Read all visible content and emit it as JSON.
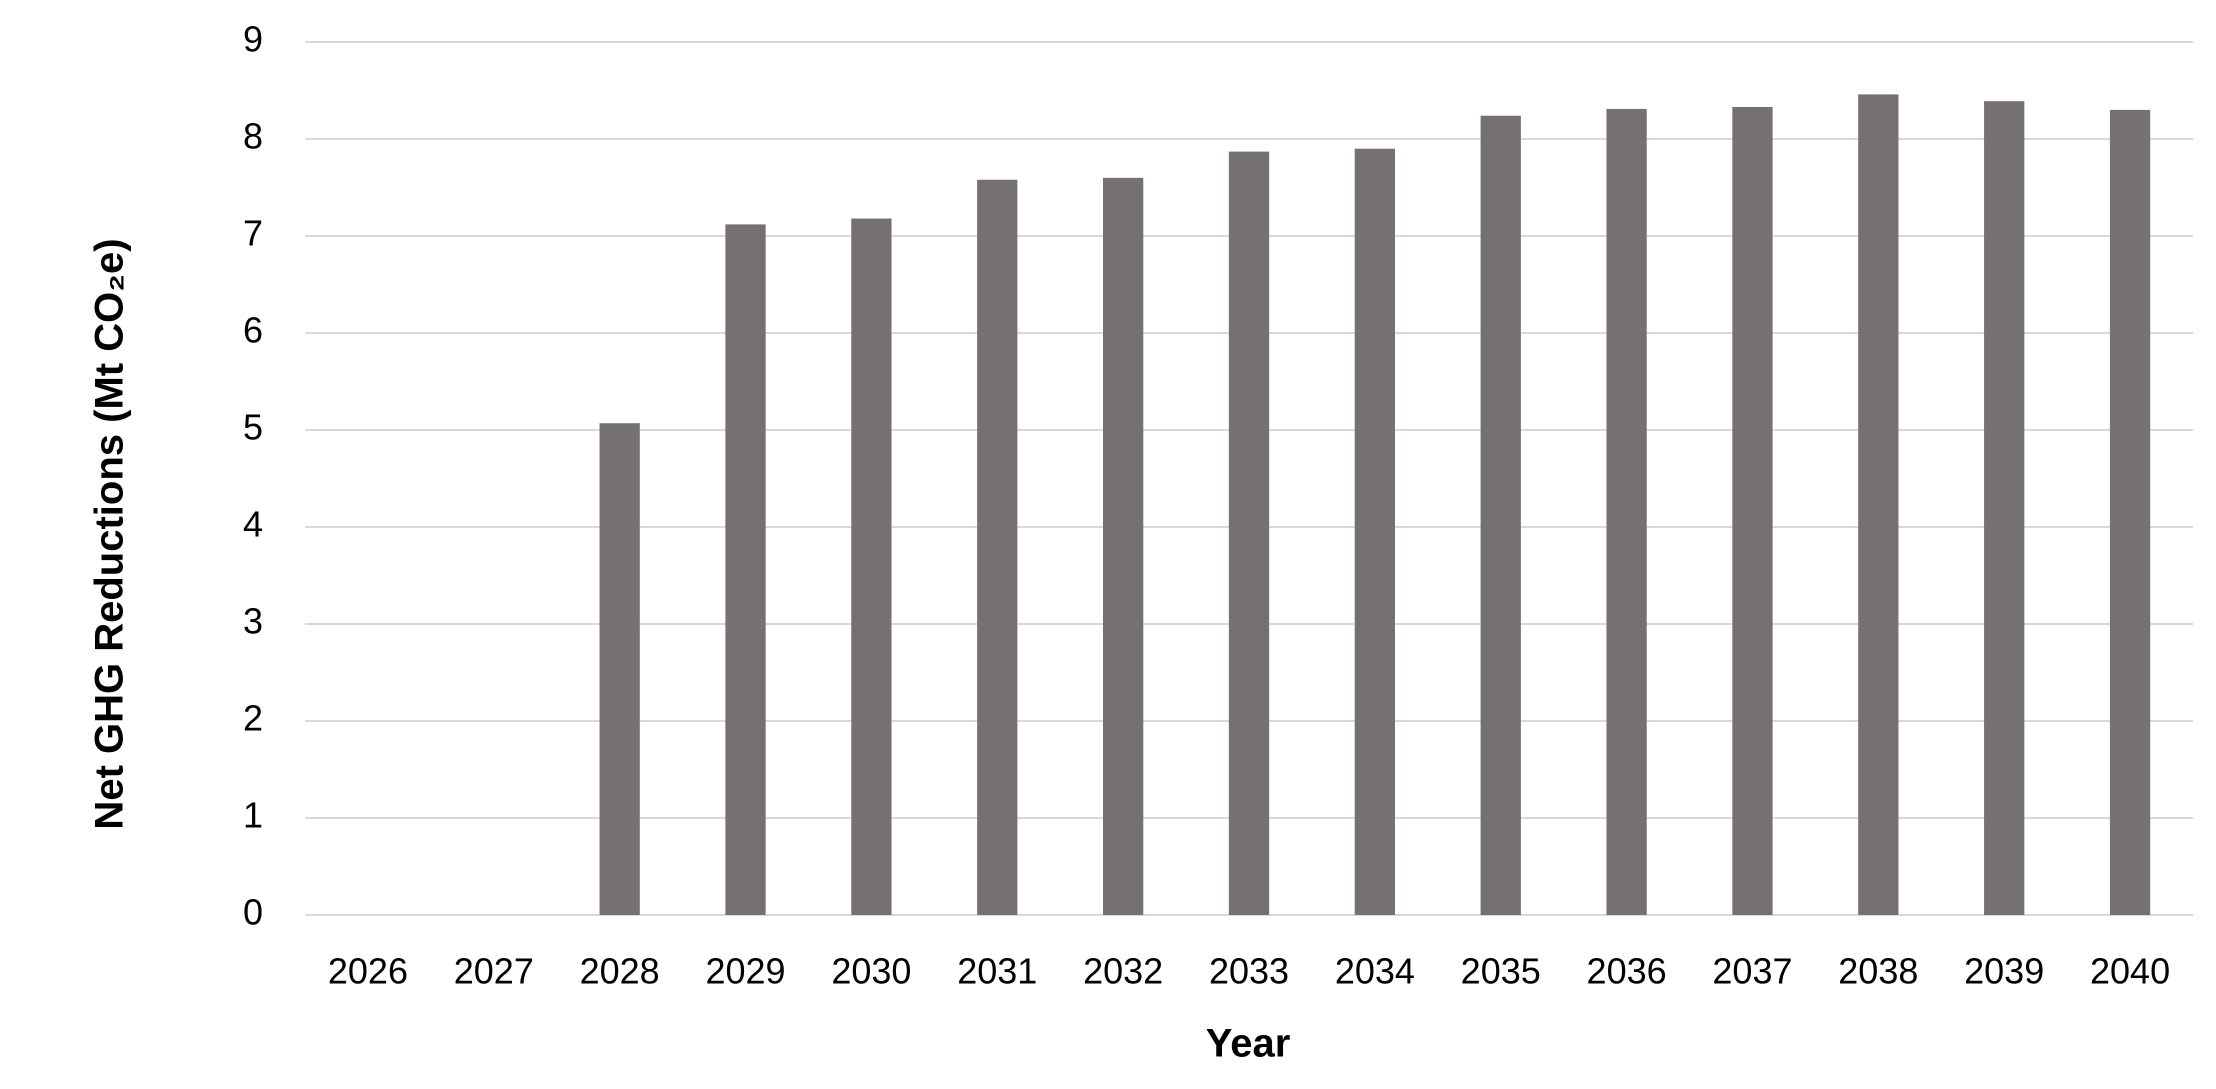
{
  "chart_data": {
    "type": "bar",
    "x_label": "Year",
    "y_label": "Net GHG Reductions (Mt CO₂e)",
    "categories": [
      "2026",
      "2027",
      "2028",
      "2029",
      "2030",
      "2031",
      "2032",
      "2033",
      "2034",
      "2035",
      "2036",
      "2037",
      "2038",
      "2039",
      "2040"
    ],
    "values": [
      0,
      0,
      5.07,
      7.12,
      7.18,
      7.58,
      7.6,
      7.87,
      7.9,
      8.24,
      8.31,
      8.33,
      8.46,
      8.39,
      8.3
    ],
    "color": "#767171",
    "ylim": [
      0,
      9
    ],
    "yticks": [
      0,
      1,
      2,
      3,
      4,
      5,
      6,
      7,
      8,
      9
    ],
    "grid": true
  }
}
